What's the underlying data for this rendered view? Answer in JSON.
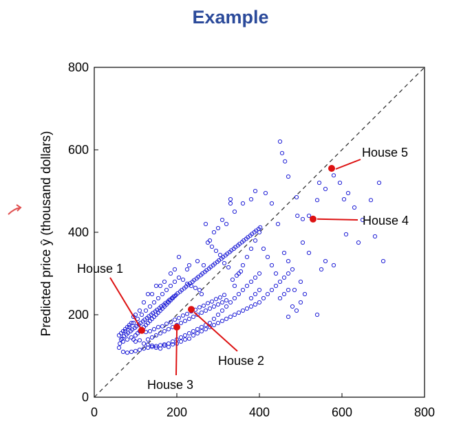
{
  "title": "Example",
  "colors": {
    "title": "#2b4a9a",
    "points": "#1f1fd6",
    "highlight": "#dd1111",
    "arrow": "#e05050"
  },
  "chart_data": {
    "type": "scatter",
    "title": "Example",
    "xlabel": "",
    "ylabel": "Predicted price ŷ (thousand dollars)",
    "xlim": [
      0,
      800
    ],
    "ylim": [
      0,
      800
    ],
    "xticks": [
      0,
      200,
      400,
      600,
      800
    ],
    "yticks": [
      0,
      200,
      400,
      600,
      800
    ],
    "grid": false,
    "diagonal_line": {
      "from": [
        0,
        0
      ],
      "to": [
        800,
        800
      ],
      "style": "dashed"
    },
    "highlighted": [
      {
        "label": "House 1",
        "x": 115,
        "y": 162
      },
      {
        "label": "House 2",
        "x": 235,
        "y": 213
      },
      {
        "label": "House 3",
        "x": 200,
        "y": 170
      },
      {
        "label": "House 4",
        "x": 530,
        "y": 432
      },
      {
        "label": "House 5",
        "x": 575,
        "y": 555
      }
    ],
    "points": [
      [
        450,
        620
      ],
      [
        455,
        592
      ],
      [
        462,
        572
      ],
      [
        470,
        535
      ],
      [
        490,
        485
      ],
      [
        492,
        440
      ],
      [
        505,
        432
      ],
      [
        520,
        440
      ],
      [
        540,
        478
      ],
      [
        545,
        520
      ],
      [
        560,
        505
      ],
      [
        580,
        538
      ],
      [
        595,
        520
      ],
      [
        605,
        480
      ],
      [
        615,
        495
      ],
      [
        630,
        460
      ],
      [
        650,
        430
      ],
      [
        670,
        478
      ],
      [
        680,
        390
      ],
      [
        690,
        520
      ],
      [
        700,
        330
      ],
      [
        640,
        375
      ],
      [
        610,
        395
      ],
      [
        580,
        320
      ],
      [
        560,
        330
      ],
      [
        550,
        310
      ],
      [
        540,
        200
      ],
      [
        470,
        195
      ],
      [
        485,
        260
      ],
      [
        500,
        280
      ],
      [
        520,
        350
      ],
      [
        505,
        375
      ],
      [
        470,
        330
      ],
      [
        460,
        350
      ],
      [
        445,
        420
      ],
      [
        430,
        470
      ],
      [
        415,
        495
      ],
      [
        390,
        500
      ],
      [
        380,
        480
      ],
      [
        360,
        470
      ],
      [
        340,
        450
      ],
      [
        330,
        480
      ],
      [
        330,
        470
      ],
      [
        320,
        420
      ],
      [
        310,
        430
      ],
      [
        300,
        410
      ],
      [
        290,
        400
      ],
      [
        280,
        380
      ],
      [
        270,
        420
      ],
      [
        265,
        320
      ],
      [
        250,
        330
      ],
      [
        230,
        320
      ],
      [
        225,
        310
      ],
      [
        205,
        340
      ],
      [
        195,
        310
      ],
      [
        185,
        300
      ],
      [
        170,
        280
      ],
      [
        160,
        270
      ],
      [
        150,
        270
      ],
      [
        140,
        250
      ],
      [
        130,
        250
      ],
      [
        120,
        230
      ],
      [
        110,
        210
      ],
      [
        100,
        200
      ],
      [
        95,
        195
      ],
      [
        90,
        180
      ],
      [
        85,
        175
      ],
      [
        80,
        170
      ],
      [
        75,
        165
      ],
      [
        70,
        160
      ],
      [
        65,
        155
      ],
      [
        60,
        150
      ],
      [
        65,
        140
      ],
      [
        70,
        135
      ],
      [
        80,
        140
      ],
      [
        90,
        145
      ],
      [
        95,
        140
      ],
      [
        100,
        135
      ],
      [
        110,
        138
      ],
      [
        120,
        130
      ],
      [
        130,
        128
      ],
      [
        140,
        125
      ],
      [
        150,
        120
      ],
      [
        160,
        118
      ],
      [
        170,
        125
      ],
      [
        180,
        122
      ],
      [
        190,
        128
      ],
      [
        200,
        130
      ],
      [
        210,
        135
      ],
      [
        220,
        140
      ],
      [
        230,
        142
      ],
      [
        240,
        150
      ],
      [
        250,
        155
      ],
      [
        260,
        160
      ],
      [
        270,
        165
      ],
      [
        280,
        170
      ],
      [
        290,
        175
      ],
      [
        300,
        180
      ],
      [
        310,
        185
      ],
      [
        320,
        190
      ],
      [
        330,
        195
      ],
      [
        340,
        200
      ],
      [
        350,
        205
      ],
      [
        360,
        210
      ],
      [
        370,
        215
      ],
      [
        380,
        220
      ],
      [
        390,
        225
      ],
      [
        400,
        230
      ],
      [
        410,
        240
      ],
      [
        420,
        250
      ],
      [
        430,
        260
      ],
      [
        440,
        270
      ],
      [
        450,
        280
      ],
      [
        460,
        290
      ],
      [
        470,
        300
      ],
      [
        480,
        310
      ],
      [
        400,
        300
      ],
      [
        390,
        290
      ],
      [
        380,
        280
      ],
      [
        370,
        270
      ],
      [
        360,
        260
      ],
      [
        350,
        250
      ],
      [
        340,
        240
      ],
      [
        330,
        230
      ],
      [
        320,
        220
      ],
      [
        310,
        210
      ],
      [
        300,
        200
      ],
      [
        290,
        190
      ],
      [
        280,
        180
      ],
      [
        270,
        175
      ],
      [
        260,
        170
      ],
      [
        250,
        165
      ],
      [
        240,
        160
      ],
      [
        230,
        155
      ],
      [
        220,
        150
      ],
      [
        210,
        145
      ],
      [
        200,
        140
      ],
      [
        190,
        135
      ],
      [
        180,
        130
      ],
      [
        170,
        128
      ],
      [
        160,
        126
      ],
      [
        150,
        124
      ],
      [
        140,
        122
      ],
      [
        130,
        120
      ],
      [
        120,
        118
      ],
      [
        110,
        115
      ],
      [
        100,
        112
      ],
      [
        90,
        110
      ],
      [
        80,
        108
      ],
      [
        70,
        110
      ],
      [
        60,
        120
      ],
      [
        62,
        130
      ],
      [
        68,
        142
      ],
      [
        72,
        148
      ],
      [
        78,
        152
      ],
      [
        82,
        156
      ],
      [
        88,
        160
      ],
      [
        92,
        164
      ],
      [
        98,
        168
      ],
      [
        102,
        172
      ],
      [
        108,
        176
      ],
      [
        112,
        180
      ],
      [
        118,
        184
      ],
      [
        122,
        188
      ],
      [
        128,
        192
      ],
      [
        132,
        196
      ],
      [
        138,
        200
      ],
      [
        142,
        204
      ],
      [
        148,
        208
      ],
      [
        152,
        212
      ],
      [
        158,
        216
      ],
      [
        162,
        220
      ],
      [
        168,
        224
      ],
      [
        172,
        228
      ],
      [
        178,
        232
      ],
      [
        182,
        236
      ],
      [
        188,
        240
      ],
      [
        192,
        244
      ],
      [
        198,
        248
      ],
      [
        202,
        252
      ],
      [
        208,
        256
      ],
      [
        212,
        260
      ],
      [
        218,
        264
      ],
      [
        222,
        268
      ],
      [
        228,
        272
      ],
      [
        232,
        276
      ],
      [
        238,
        280
      ],
      [
        242,
        284
      ],
      [
        248,
        288
      ],
      [
        252,
        292
      ],
      [
        258,
        296
      ],
      [
        262,
        300
      ],
      [
        268,
        304
      ],
      [
        272,
        308
      ],
      [
        278,
        312
      ],
      [
        282,
        316
      ],
      [
        288,
        320
      ],
      [
        292,
        324
      ],
      [
        298,
        328
      ],
      [
        302,
        332
      ],
      [
        308,
        336
      ],
      [
        312,
        340
      ],
      [
        318,
        344
      ],
      [
        322,
        348
      ],
      [
        328,
        352
      ],
      [
        332,
        356
      ],
      [
        338,
        360
      ],
      [
        342,
        364
      ],
      [
        348,
        368
      ],
      [
        352,
        372
      ],
      [
        358,
        376
      ],
      [
        362,
        380
      ],
      [
        368,
        384
      ],
      [
        372,
        388
      ],
      [
        378,
        392
      ],
      [
        382,
        396
      ],
      [
        388,
        400
      ],
      [
        392,
        404
      ],
      [
        398,
        408
      ],
      [
        402,
        412
      ],
      [
        125,
        158
      ],
      [
        135,
        160
      ],
      [
        145,
        165
      ],
      [
        155,
        170
      ],
      [
        165,
        172
      ],
      [
        175,
        178
      ],
      [
        185,
        182
      ],
      [
        195,
        188
      ],
      [
        205,
        192
      ],
      [
        215,
        198
      ],
      [
        225,
        202
      ],
      [
        235,
        208
      ],
      [
        245,
        212
      ],
      [
        255,
        218
      ],
      [
        265,
        222
      ],
      [
        275,
        228
      ],
      [
        285,
        232
      ],
      [
        295,
        238
      ],
      [
        305,
        242
      ],
      [
        315,
        248
      ],
      [
        130,
        140
      ],
      [
        140,
        145
      ],
      [
        150,
        150
      ],
      [
        160,
        155
      ],
      [
        170,
        160
      ],
      [
        180,
        165
      ],
      [
        190,
        170
      ],
      [
        200,
        175
      ],
      [
        210,
        180
      ],
      [
        220,
        185
      ],
      [
        230,
        190
      ],
      [
        240,
        195
      ],
      [
        250,
        200
      ],
      [
        260,
        205
      ],
      [
        270,
        210
      ],
      [
        280,
        215
      ],
      [
        290,
        220
      ],
      [
        300,
        225
      ],
      [
        310,
        230
      ],
      [
        320,
        235
      ],
      [
        100,
        150
      ],
      [
        105,
        155
      ],
      [
        110,
        160
      ],
      [
        115,
        165
      ],
      [
        120,
        170
      ],
      [
        125,
        175
      ],
      [
        130,
        180
      ],
      [
        135,
        185
      ],
      [
        140,
        190
      ],
      [
        145,
        195
      ],
      [
        150,
        200
      ],
      [
        155,
        205
      ],
      [
        160,
        210
      ],
      [
        165,
        215
      ],
      [
        170,
        220
      ],
      [
        175,
        225
      ],
      [
        180,
        230
      ],
      [
        185,
        235
      ],
      [
        190,
        240
      ],
      [
        195,
        245
      ],
      [
        350,
        300
      ],
      [
        360,
        320
      ],
      [
        370,
        340
      ],
      [
        380,
        360
      ],
      [
        390,
        380
      ],
      [
        400,
        400
      ],
      [
        410,
        360
      ],
      [
        420,
        340
      ],
      [
        430,
        320
      ],
      [
        440,
        300
      ],
      [
        450,
        240
      ],
      [
        460,
        250
      ],
      [
        470,
        260
      ],
      [
        480,
        220
      ],
      [
        490,
        210
      ],
      [
        500,
        230
      ],
      [
        510,
        250
      ],
      [
        380,
        240
      ],
      [
        390,
        250
      ],
      [
        400,
        260
      ],
      [
        340,
        270
      ],
      [
        335,
        285
      ],
      [
        345,
        295
      ],
      [
        355,
        305
      ],
      [
        325,
        315
      ],
      [
        315,
        325
      ],
      [
        305,
        345
      ],
      [
        295,
        355
      ],
      [
        285,
        365
      ],
      [
        275,
        375
      ],
      [
        260,
        250
      ],
      [
        255,
        260
      ],
      [
        245,
        265
      ],
      [
        235,
        270
      ],
      [
        225,
        275
      ],
      [
        215,
        285
      ],
      [
        205,
        290
      ],
      [
        195,
        280
      ],
      [
        185,
        270
      ],
      [
        175,
        260
      ],
      [
        165,
        250
      ],
      [
        155,
        240
      ],
      [
        145,
        230
      ],
      [
        135,
        220
      ],
      [
        125,
        210
      ],
      [
        115,
        200
      ],
      [
        105,
        190
      ],
      [
        95,
        180
      ],
      [
        85,
        170
      ],
      [
        75,
        160
      ]
    ]
  },
  "axis": {
    "x_ticks": [
      "0",
      "200",
      "400",
      "600",
      "800"
    ],
    "y_ticks": [
      "0",
      "200",
      "400",
      "600",
      "800"
    ]
  }
}
